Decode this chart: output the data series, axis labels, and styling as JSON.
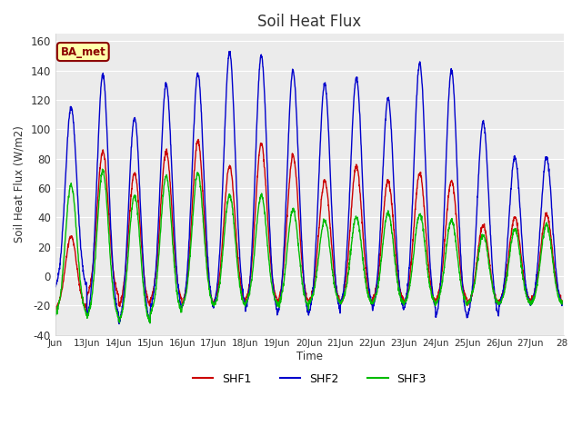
{
  "title": "Soil Heat Flux",
  "ylabel": "Soil Heat Flux (W/m2)",
  "xlabel": "Time",
  "ylim": [
    -40,
    165
  ],
  "yticks": [
    -40,
    -20,
    0,
    20,
    40,
    60,
    80,
    100,
    120,
    140,
    160
  ],
  "fig_bg_color": "#ffffff",
  "plot_bg_color": "#ebebeb",
  "line_colors": {
    "SHF1": "#cc0000",
    "SHF2": "#0000cc",
    "SHF3": "#00bb00"
  },
  "line_widths": {
    "SHF1": 1.0,
    "SHF2": 1.0,
    "SHF3": 1.0
  },
  "ba_met_label": "BA_met",
  "ba_met_bg": "#ffffaa",
  "ba_met_border": "#8B0000",
  "legend_labels": [
    "SHF1",
    "SHF2",
    "SHF3"
  ],
  "n_days": 16,
  "start_day": 12,
  "xtick_labels": [
    "Jun",
    "13Jun",
    "14Jun",
    "15Jun",
    "16Jun",
    "17Jun",
    "18Jun",
    "19Jun",
    "20Jun",
    "21Jun",
    "22Jun",
    "23Jun",
    "24Jun",
    "25Jun",
    "26Jun",
    "27Jun",
    "28"
  ],
  "day_peaks_shf2": [
    115,
    137,
    108,
    131,
    138,
    152,
    150,
    140,
    131,
    135,
    121,
    145,
    140,
    105,
    81,
    81
  ],
  "day_peaks_shf1": [
    27,
    85,
    70,
    85,
    92,
    75,
    90,
    82,
    65,
    75,
    65,
    70,
    65,
    35,
    40,
    42
  ],
  "day_peaks_shf3": [
    62,
    72,
    55,
    68,
    70,
    55,
    55,
    45,
    38,
    40,
    43,
    42,
    38,
    28,
    32,
    35
  ],
  "night_troughs_shf1": [
    -23,
    -15,
    -22,
    -18,
    -22,
    -20,
    -18,
    -20,
    -19,
    -20,
    -18,
    -20,
    -18,
    -20,
    -18,
    -18
  ],
  "night_troughs_shf2": [
    -10,
    -30,
    -35,
    -25,
    -25,
    -23,
    -27,
    -30,
    -28,
    -22,
    -26,
    -25,
    -32,
    -30,
    -22,
    -22
  ],
  "night_troughs_shf3": [
    -28,
    -30,
    -33,
    -27,
    -22,
    -22,
    -20,
    -22,
    -20,
    -20,
    -20,
    -20,
    -20,
    -20,
    -20,
    -20
  ],
  "peak_hour": 0.5,
  "peak_sharpness": 6.0,
  "trough_sharpness": 2.0
}
